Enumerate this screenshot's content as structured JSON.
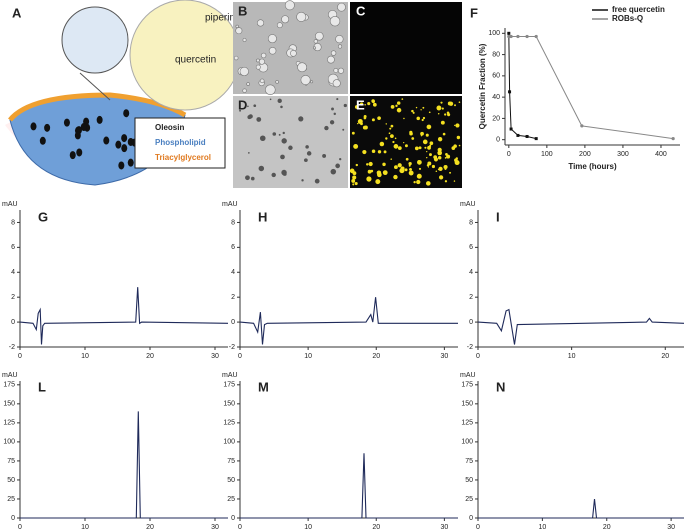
{
  "panels": {
    "A": {
      "label": "A",
      "molecules": [
        "piperine",
        "quercetin"
      ],
      "legend": [
        "Oleosin",
        "Phospholipid",
        "Triacylglycerol"
      ]
    },
    "B": {
      "label": "B"
    },
    "C": {
      "label": "C"
    },
    "D": {
      "label": "D"
    },
    "E": {
      "label": "E"
    }
  },
  "chart_data": [
    {
      "type": "line",
      "label": "F",
      "x_label": "Time (hours)",
      "y_label": "Quercetin Fraction (%)",
      "x": [
        0,
        2,
        6,
        24,
        48,
        72,
        192,
        432
      ],
      "series": [
        {
          "name": "free quercetin",
          "color": "#111111",
          "values": [
            100,
            45,
            10,
            4,
            3,
            1,
            null,
            null
          ]
        },
        {
          "name": "ROBs-Q",
          "color": "#888888",
          "values": [
            97,
            97,
            97,
            97,
            97,
            97,
            13,
            1
          ]
        }
      ],
      "xlim": [
        -10,
        450
      ],
      "xticks": [
        0,
        100,
        200,
        300,
        400
      ],
      "ylim": [
        -5,
        105
      ],
      "yticks": [
        0,
        20,
        40,
        60,
        80,
        100
      ]
    },
    {
      "type": "line",
      "label": "G",
      "y_label": "mAU",
      "color": "#1f2a5a",
      "x": [
        0,
        2,
        2.5,
        2.8,
        3.1,
        3.3,
        3.5,
        3.8,
        17.8,
        18.1,
        18.4,
        18.7,
        32
      ],
      "values": [
        0,
        -0.1,
        -0.6,
        0.7,
        1.0,
        -1.8,
        -0.3,
        -0.1,
        0,
        2.8,
        -0.1,
        0,
        -0.1
      ],
      "xlim": [
        0,
        32
      ],
      "xticks": [
        0,
        10,
        20,
        30
      ],
      "ylim": [
        -2,
        9
      ],
      "yticks": [
        -2,
        0,
        2,
        4,
        6,
        8
      ]
    },
    {
      "type": "line",
      "label": "H",
      "y_label": "mAU",
      "color": "#1f2a5a",
      "x": [
        0,
        2,
        2.6,
        3,
        3.3,
        3.6,
        4,
        18.5,
        19.2,
        19.5,
        19.9,
        20.3,
        32
      ],
      "values": [
        0,
        -0.1,
        -0.8,
        0.8,
        -1.8,
        -0.2,
        -0.1,
        0,
        0.6,
        0,
        2.0,
        -0.1,
        -0.1
      ],
      "xlim": [
        0,
        32
      ],
      "xticks": [
        0,
        10,
        20,
        30
      ],
      "ylim": [
        -2,
        9
      ],
      "yticks": [
        -2,
        0,
        2,
        4,
        6,
        8
      ]
    },
    {
      "type": "line",
      "label": "I",
      "y_label": "mAU",
      "color": "#1f2a5a",
      "x": [
        0,
        2,
        2.5,
        3,
        3.3,
        3.6,
        3.9,
        4.2,
        18,
        18.3,
        18.6,
        22
      ],
      "values": [
        0,
        -0.1,
        -0.7,
        0.9,
        1.0,
        -0.4,
        -1.8,
        -0.2,
        0,
        0.3,
        0,
        -0.1
      ],
      "xlim": [
        0,
        22
      ],
      "xticks": [
        0,
        10,
        20
      ],
      "ylim": [
        -2,
        9
      ],
      "yticks": [
        -2,
        0,
        2,
        4,
        6,
        8
      ]
    },
    {
      "type": "line",
      "label": "L",
      "y_label": "mAU",
      "color": "#1f2a5a",
      "x": [
        0,
        17.9,
        18.2,
        18.5,
        32
      ],
      "values": [
        0,
        0,
        140,
        0,
        0
      ],
      "xlim": [
        0,
        32
      ],
      "xticks": [
        0,
        10,
        20,
        30
      ],
      "ylim": [
        0,
        180
      ],
      "yticks": [
        0,
        25,
        50,
        75,
        100,
        125,
        150,
        175
      ]
    },
    {
      "type": "line",
      "label": "M",
      "y_label": "mAU",
      "color": "#1f2a5a",
      "x": [
        0,
        17.9,
        18.2,
        18.5,
        32
      ],
      "values": [
        0,
        0,
        85,
        0,
        0
      ],
      "xlim": [
        0,
        32
      ],
      "xticks": [
        0,
        10,
        20,
        30
      ],
      "ylim": [
        0,
        180
      ],
      "yticks": [
        0,
        25,
        50,
        75,
        100,
        125,
        150,
        175
      ]
    },
    {
      "type": "line",
      "label": "N",
      "y_label": "mAU",
      "color": "#1f2a5a",
      "x": [
        0,
        17.8,
        18.1,
        18.4,
        32
      ],
      "values": [
        0,
        0,
        25,
        0,
        0
      ],
      "xlim": [
        0,
        32
      ],
      "xticks": [
        0,
        10,
        20,
        30
      ],
      "ylim": [
        0,
        180
      ],
      "yticks": [
        0,
        25,
        50,
        75,
        100,
        125,
        150,
        175
      ]
    }
  ]
}
